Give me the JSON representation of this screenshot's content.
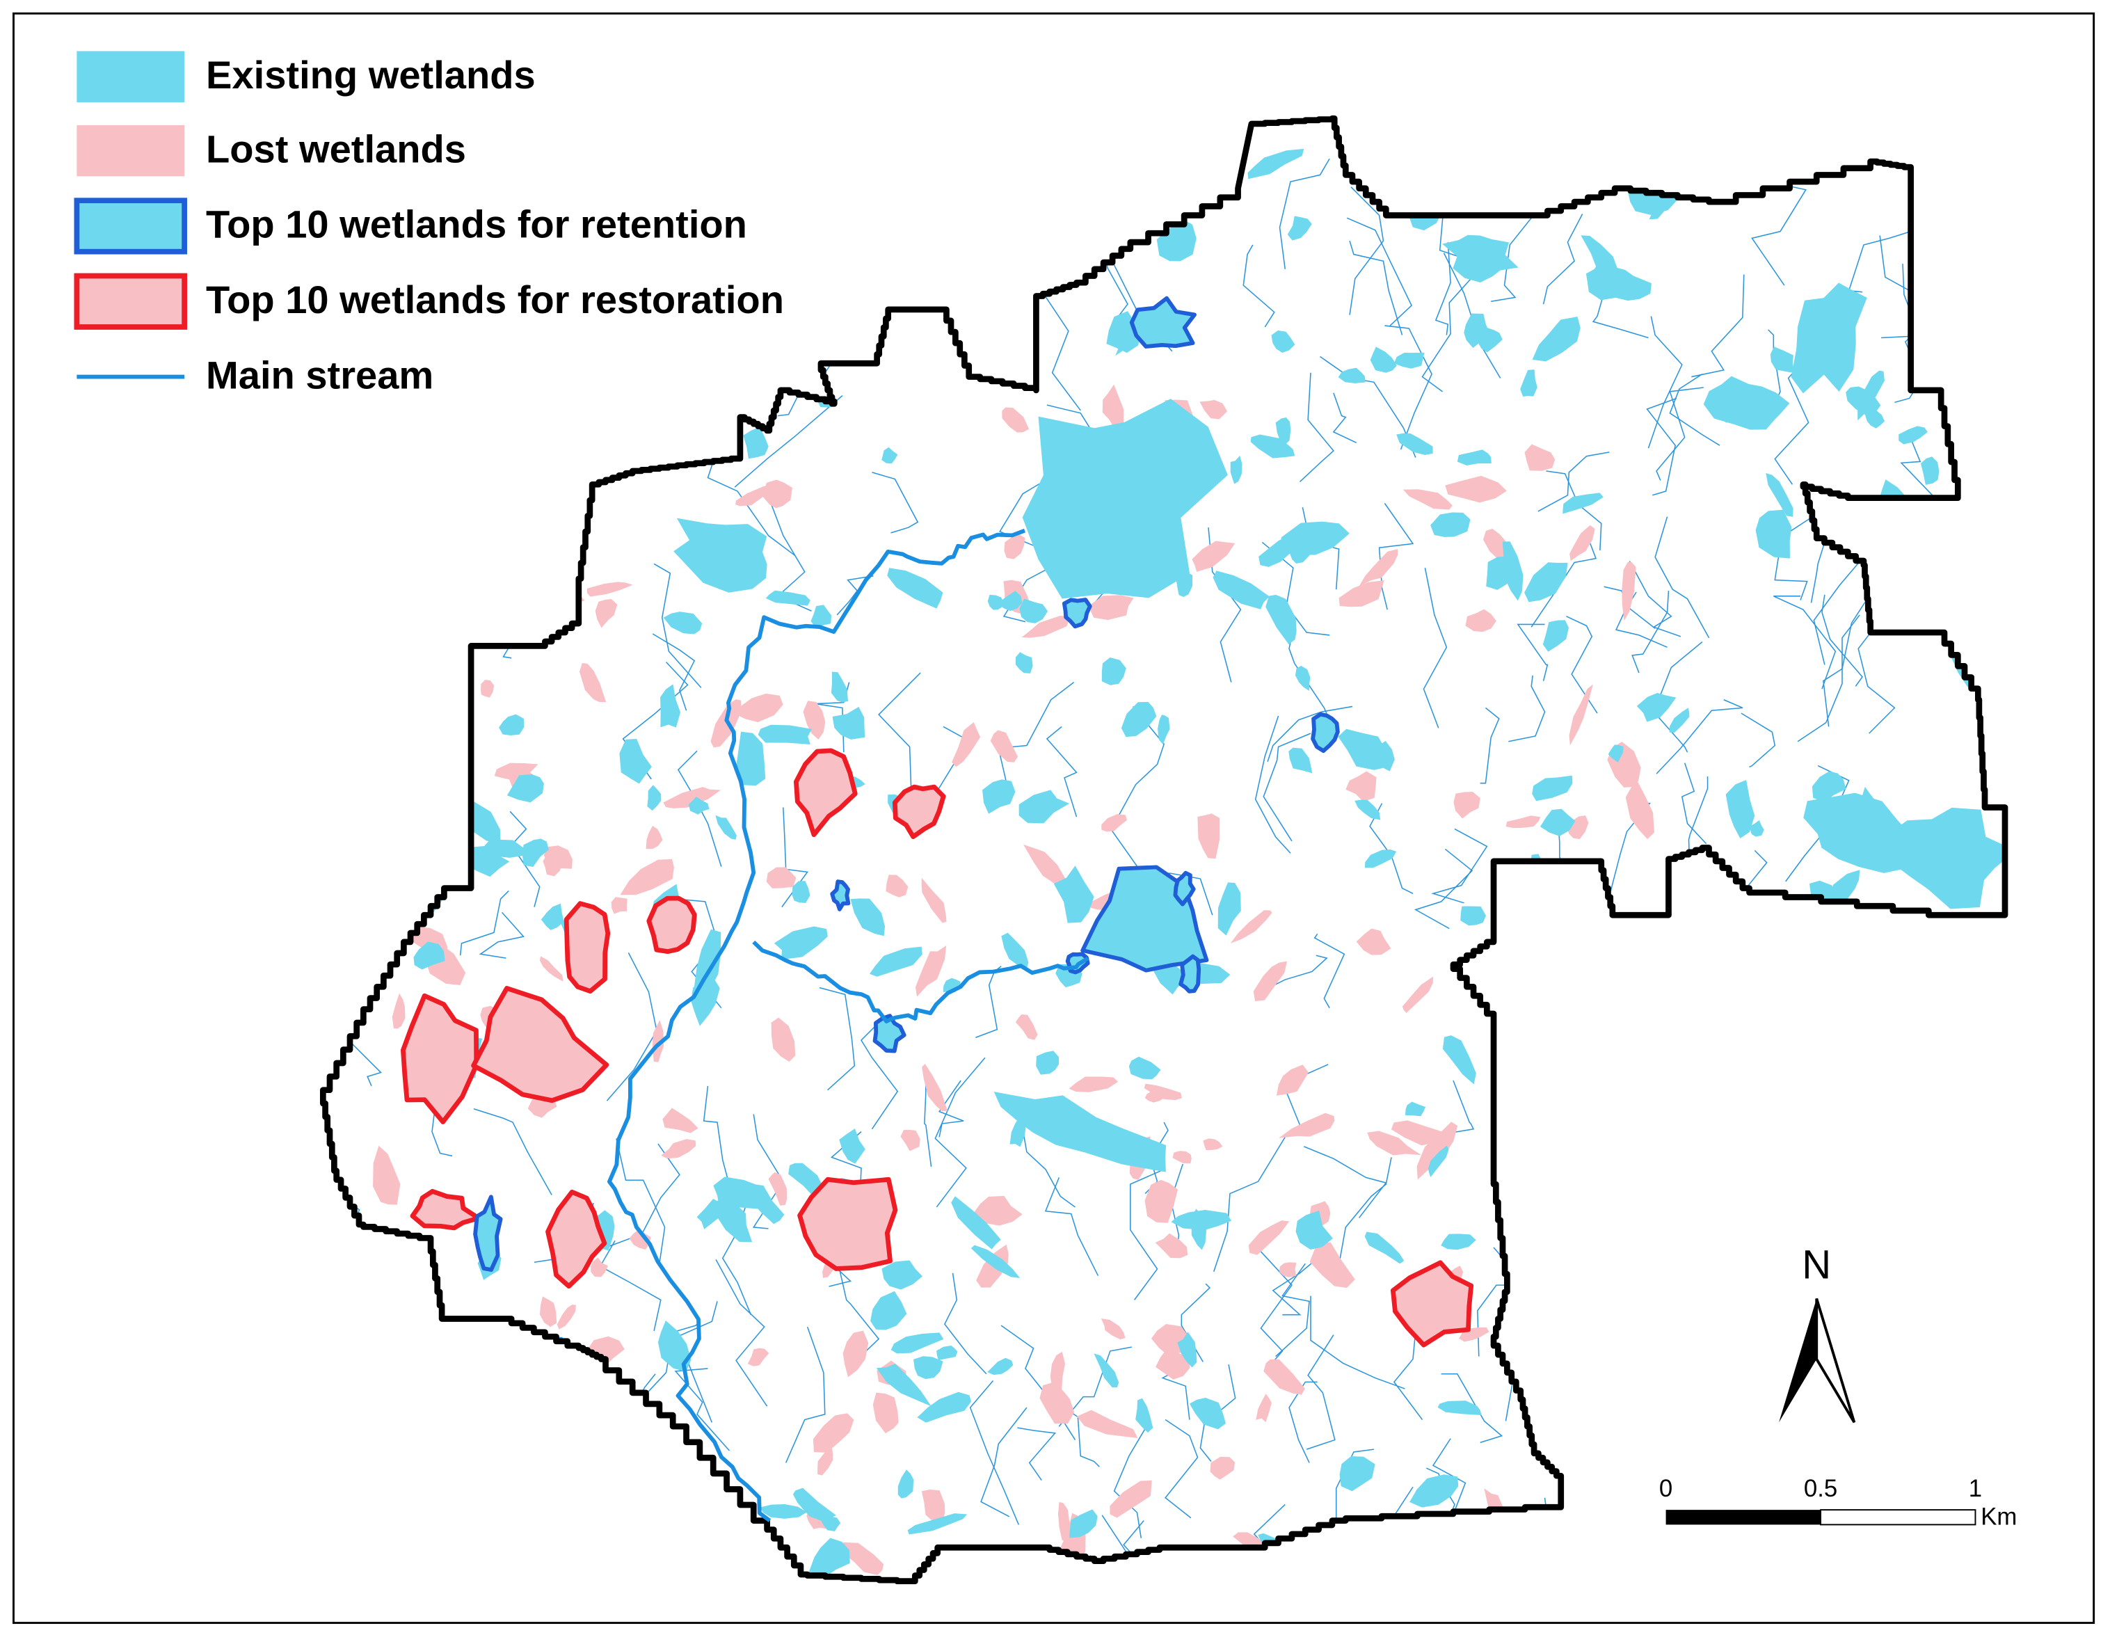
{
  "legend": {
    "items": [
      {
        "label": "Existing wetlands"
      },
      {
        "label": "Lost wetlands"
      },
      {
        "label": "Top 10 wetlands for retention"
      },
      {
        "label": "Top 10 wetlands for restoration"
      },
      {
        "label": "Main stream"
      }
    ]
  },
  "north_arrow": {
    "label": "N"
  },
  "scale_bar": {
    "ticks": [
      0,
      0.5,
      1
    ],
    "unit": "Km"
  }
}
